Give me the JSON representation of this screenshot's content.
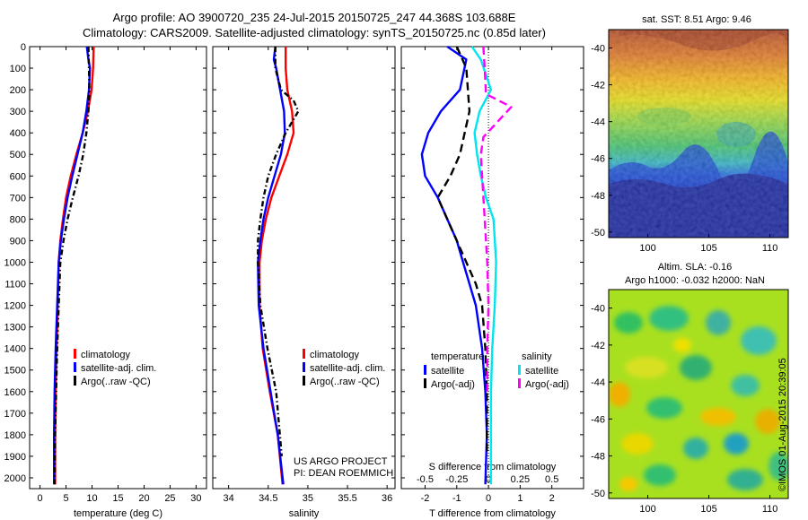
{
  "header": {
    "title_line1": "Argo profile: AO 3900720_235 24-Jul-2015 20150725_247 44.368S 103.688E",
    "title_line2": "Climatology: CARS2009. Satellite-adjusted climatology: synTS_20150725.nc (0.85d later)"
  },
  "credits": {
    "project": "US ARGO PROJECT",
    "pi": "PI: DEAN ROEMMICH",
    "stamp": "©IMOS 01-Aug-2015 20:39:05"
  },
  "map_labels": {
    "sst": "sat. SST: 8.51 Argo: 9.46",
    "sla_line1": "Altim. SLA: -0.16",
    "sla_line2": "Argo h1000: -0.032 h2000: NaN"
  },
  "colors": {
    "climatology": "#ff0000",
    "satellite": "#0000ff",
    "argo": "#000000",
    "sal_satellite": "#00e5ee",
    "sal_argo": "#ff00ff"
  },
  "chart_data": [
    {
      "type": "line",
      "id": "temperature",
      "xlabel": "temperature (deg C)",
      "ylabel": "",
      "xlim": [
        -2,
        32
      ],
      "ylim": [
        2050,
        0
      ],
      "xticks": [
        0,
        5,
        10,
        15,
        20,
        25,
        30
      ],
      "yticks": [
        0,
        100,
        200,
        300,
        400,
        500,
        600,
        700,
        800,
        900,
        1000,
        1100,
        1200,
        1300,
        1400,
        1500,
        1600,
        1700,
        1800,
        1900,
        2000
      ],
      "legend": [
        "climatology",
        "satellite-adj. clim.",
        "Argo(..raw -QC)"
      ],
      "series": [
        {
          "name": "climatology",
          "color": "#ff0000",
          "dash": "",
          "x": [
            10.3,
            10.2,
            9.9,
            9.2,
            8.2,
            7.0,
            5.9,
            5.0,
            4.4,
            3.9,
            3.6,
            3.4,
            3.2,
            3.0,
            2.9,
            2.9
          ],
          "y": [
            0,
            100,
            200,
            300,
            400,
            500,
            600,
            700,
            800,
            900,
            1000,
            1200,
            1400,
            1600,
            1800,
            2030
          ]
        },
        {
          "name": "satellite-adj. clim.",
          "color": "#0000ff",
          "dash": "",
          "x": [
            9.0,
            9.3,
            9.6,
            9.4,
            8.9,
            8.2,
            7.2,
            6.2,
            5.3,
            4.6,
            4.0,
            3.6,
            3.3,
            3.0,
            2.8,
            2.7,
            2.7
          ],
          "y": [
            0,
            60,
            100,
            200,
            300,
            400,
            500,
            600,
            700,
            800,
            900,
            1000,
            1200,
            1400,
            1600,
            1800,
            2030
          ]
        },
        {
          "name": "Argo(..raw -QC)",
          "color": "#000000",
          "dash": "6,3,1.5,3",
          "x": [
            9.3,
            9.4,
            9.5,
            9.3,
            8.9,
            8.3,
            7.4,
            6.3,
            5.3,
            4.5,
            3.9,
            3.6,
            3.3,
            3.1,
            2.9,
            2.8
          ],
          "y": [
            0,
            100,
            200,
            300,
            400,
            500,
            600,
            700,
            800,
            900,
            1000,
            1200,
            1400,
            1600,
            1800,
            2030
          ]
        }
      ]
    },
    {
      "type": "line",
      "id": "salinity",
      "xlabel": "salinity",
      "ylabel": "",
      "xlim": [
        33.8,
        36.1
      ],
      "ylim": [
        2050,
        0
      ],
      "xticks": [
        34,
        34.5,
        35,
        35.5,
        36
      ],
      "xticklabels": [
        "34",
        "34.5",
        "35",
        "35.5",
        "36"
      ],
      "legend": [
        "climatology",
        "satellite-adj. clim.",
        "Argo(..raw -QC)"
      ],
      "series": [
        {
          "name": "climatology",
          "color": "#ff0000",
          "dash": "",
          "x": [
            34.72,
            34.72,
            34.74,
            34.8,
            34.82,
            34.74,
            34.64,
            34.54,
            34.47,
            34.42,
            34.39,
            34.39,
            34.43,
            34.52,
            34.62,
            34.68
          ],
          "y": [
            0,
            100,
            200,
            300,
            400,
            500,
            600,
            700,
            800,
            900,
            1000,
            1200,
            1400,
            1600,
            1800,
            2030
          ]
        },
        {
          "name": "satellite-adj. clim.",
          "color": "#0000ff",
          "dash": "",
          "x": [
            34.59,
            34.57,
            34.6,
            34.65,
            34.7,
            34.71,
            34.66,
            34.58,
            34.5,
            34.44,
            34.4,
            34.37,
            34.38,
            34.44,
            34.53,
            34.62,
            34.69
          ],
          "y": [
            0,
            60,
            100,
            200,
            300,
            400,
            500,
            600,
            700,
            800,
            900,
            1000,
            1200,
            1400,
            1600,
            1800,
            2030
          ]
        },
        {
          "name": "Argo(..raw -QC)",
          "color": "#000000",
          "dash": "6,3,1.5,3",
          "x": [
            34.59,
            34.59,
            34.66,
            34.82,
            34.88,
            34.72,
            34.6,
            34.5,
            34.44,
            34.4,
            34.37,
            34.37,
            34.4,
            34.49,
            34.6,
            34.67
          ],
          "y": [
            0,
            100,
            200,
            250,
            300,
            400,
            500,
            600,
            700,
            800,
            900,
            1000,
            1200,
            1400,
            1600,
            1900
          ]
        }
      ]
    },
    {
      "type": "line",
      "id": "difference",
      "xlabel": "T difference from climatology",
      "top_label": "S difference from climatology",
      "ylabel": "",
      "xlim": [
        -2.75,
        3.0
      ],
      "ylim": [
        2050,
        0
      ],
      "xticks": [
        -2,
        -1,
        0,
        1,
        2
      ],
      "xticklabels": [
        "-2",
        "-1",
        "0",
        "1",
        "2"
      ],
      "sal_ticks": [
        -0.5,
        -0.25,
        0,
        0.25,
        0.5
      ],
      "sal_ticklabels": [
        "-0.5",
        "-0.25",
        "0",
        "0.25",
        "0.5"
      ],
      "legend_headers": [
        "temperature",
        "salinity"
      ],
      "legend": [
        "satellite",
        "Argo(-adj)",
        "satellite",
        "Argo(-adj)"
      ],
      "series": [
        {
          "name": "satellite",
          "color": "#0000ff",
          "dash": "",
          "x": [
            -1.3,
            -0.7,
            -0.9,
            -1.5,
            -1.9,
            -2.1,
            -2.0,
            -1.6,
            -1.3,
            -1.0,
            -0.8,
            -0.6,
            -0.4,
            -0.2,
            -0.1,
            -0.05,
            -0.1
          ],
          "y": [
            0,
            60,
            200,
            300,
            400,
            500,
            600,
            700,
            800,
            900,
            1000,
            1100,
            1200,
            1400,
            1600,
            1800,
            2030
          ]
        },
        {
          "name": "Argo(-adj)",
          "color": "#000000",
          "dash": "9,5",
          "x": [
            -1.0,
            -0.7,
            -0.6,
            -0.9,
            -1.2,
            -1.6,
            -1.3,
            -1.0,
            -0.7,
            -0.4,
            -0.2,
            -0.1,
            -0.05,
            -0.05
          ],
          "y": [
            0,
            100,
            300,
            500,
            600,
            700,
            800,
            900,
            1000,
            1100,
            1200,
            1400,
            1600,
            1900
          ]
        },
        {
          "name": "satellite",
          "color": "#00e5ee",
          "dash": "",
          "x": [
            -0.13,
            -0.06,
            0.02,
            -0.07,
            -0.11,
            -0.09,
            -0.06,
            -0.02,
            0.04,
            0.06,
            0.05,
            0.03,
            0.02,
            0.02,
            0.02
          ],
          "y": [
            0,
            60,
            200,
            300,
            400,
            500,
            600,
            700,
            800,
            1000,
            1200,
            1400,
            1600,
            1800,
            2030
          ]
        },
        {
          "name": "Argo(-adj)",
          "color": "#ff00ff",
          "dash": "9,5",
          "x": [
            -0.04,
            -0.03,
            -0.02,
            0.08,
            0.18,
            -0.04,
            -0.06,
            -0.05,
            -0.03,
            -0.01,
            0.0,
            -0.01,
            -0.01
          ],
          "y": [
            0,
            100,
            220,
            250,
            280,
            420,
            500,
            600,
            800,
            1000,
            1200,
            1400,
            1600
          ]
        }
      ]
    }
  ],
  "maps": [
    {
      "id": "sst-map",
      "type": "heatmap",
      "xticks": [
        100,
        105,
        110
      ],
      "yticks": [
        -40,
        -42,
        -44,
        -46,
        -48,
        -50
      ],
      "xlim": [
        96.8,
        111.5
      ],
      "ylim": [
        -50.3,
        -39.0
      ]
    },
    {
      "id": "sla-map",
      "type": "heatmap",
      "xticks": [
        100,
        105,
        110
      ],
      "yticks": [
        -40,
        -42,
        -44,
        -46,
        -48,
        -50
      ],
      "xlim": [
        96.8,
        111.5
      ],
      "ylim": [
        -50.3,
        -39.0
      ]
    }
  ]
}
